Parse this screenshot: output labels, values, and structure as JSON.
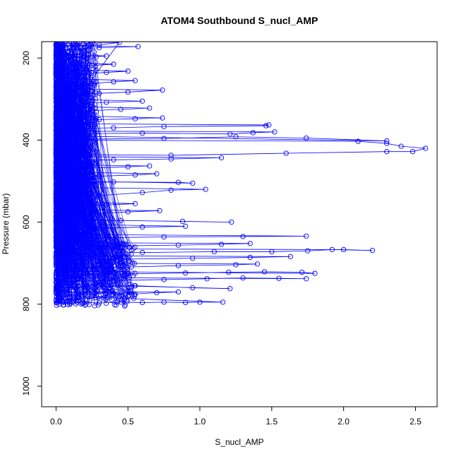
{
  "chart_data": {
    "type": "scatter",
    "title": "ATOM4 Southbound S_nucl_AMP",
    "xlabel": "S_nucl_AMP",
    "ylabel": "Pressure (mbar)",
    "xlim": [
      -0.1,
      2.65
    ],
    "ylim": [
      1050,
      160
    ],
    "y_inverted": true,
    "x_ticks": [
      0.0,
      0.5,
      1.0,
      1.5,
      2.0,
      2.5
    ],
    "x_tick_labels": [
      "0.0",
      "0.5",
      "1.0",
      "1.5",
      "2.0",
      "2.5"
    ],
    "y_ticks": [
      200,
      400,
      600,
      800,
      1000
    ],
    "y_tick_labels": [
      "200",
      "400",
      "600",
      "800",
      "1000"
    ],
    "grid": false,
    "legend": "none",
    "marker": "open-circle",
    "connect_points": true,
    "series": [
      {
        "values_description_points": [
          [
            0.02,
            800
          ],
          [
            0.05,
            795
          ],
          [
            0.1,
            798
          ],
          [
            0.18,
            795
          ],
          [
            0.3,
            797
          ],
          [
            0.45,
            795
          ],
          [
            0.6,
            796
          ],
          [
            0.75,
            795
          ],
          [
            0.9,
            796
          ],
          [
            1.0,
            795
          ],
          [
            1.16,
            795
          ],
          [
            0.03,
            780
          ],
          [
            0.2,
            775
          ],
          [
            0.35,
            772
          ],
          [
            0.55,
            775
          ],
          [
            0.7,
            772
          ],
          [
            0.85,
            770
          ],
          [
            0.05,
            770
          ],
          [
            0.02,
            760
          ],
          [
            0.25,
            758
          ],
          [
            0.55,
            755
          ],
          [
            0.95,
            760
          ],
          [
            1.21,
            762
          ],
          [
            0.1,
            752
          ],
          [
            0.04,
            745
          ],
          [
            0.4,
            742
          ],
          [
            0.75,
            740
          ],
          [
            1.05,
            738
          ],
          [
            1.3,
            736
          ],
          [
            1.55,
            737
          ],
          [
            1.74,
            738
          ],
          [
            0.06,
            735
          ],
          [
            0.03,
            728
          ],
          [
            0.5,
            726
          ],
          [
            0.9,
            724
          ],
          [
            1.2,
            722
          ],
          [
            1.45,
            721
          ],
          [
            1.71,
            722
          ],
          [
            1.8,
            725
          ],
          [
            0.05,
            720
          ],
          [
            0.02,
            712
          ],
          [
            0.45,
            710
          ],
          [
            0.85,
            706
          ],
          [
            1.25,
            704
          ],
          [
            1.4,
            702
          ],
          [
            0.08,
            700
          ],
          [
            0.02,
            692
          ],
          [
            0.5,
            690
          ],
          [
            0.95,
            688
          ],
          [
            1.35,
            686
          ],
          [
            1.63,
            684
          ],
          [
            0.07,
            682
          ],
          [
            0.03,
            676
          ],
          [
            0.6,
            674
          ],
          [
            1.1,
            672
          ],
          [
            1.5,
            672
          ],
          [
            1.75,
            670
          ],
          [
            1.92,
            667
          ],
          [
            2.2,
            669
          ],
          [
            2.0,
            667
          ],
          [
            0.05,
            665
          ],
          [
            0.02,
            660
          ],
          [
            0.4,
            658
          ],
          [
            0.85,
            656
          ],
          [
            1.15,
            654
          ],
          [
            1.35,
            652
          ],
          [
            0.1,
            650
          ],
          [
            0.03,
            640
          ],
          [
            0.35,
            638
          ],
          [
            0.75,
            636
          ],
          [
            1.3,
            635
          ],
          [
            1.74,
            634
          ],
          [
            0.06,
            630
          ],
          [
            0.02,
            618
          ],
          [
            0.3,
            615
          ],
          [
            0.6,
            612
          ],
          [
            0.9,
            610
          ],
          [
            0.05,
            605
          ],
          [
            0.02,
            598
          ],
          [
            0.45,
            596
          ],
          [
            0.88,
            598
          ],
          [
            1.22,
            600
          ],
          [
            0.07,
            594
          ],
          [
            0.03,
            585
          ],
          [
            0.25,
            580
          ],
          [
            0.5,
            575
          ],
          [
            0.72,
            572
          ],
          [
            0.04,
            570
          ],
          [
            0.02,
            562
          ],
          [
            0.35,
            558
          ],
          [
            0.55,
            555
          ],
          [
            0.03,
            550
          ],
          [
            0.05,
            540
          ],
          [
            0.3,
            535
          ],
          [
            0.6,
            528
          ],
          [
            0.8,
            522
          ],
          [
            1.04,
            520
          ],
          [
            0.06,
            515
          ],
          [
            0.02,
            505
          ],
          [
            0.4,
            502
          ],
          [
            0.85,
            503
          ],
          [
            0.95,
            505
          ],
          [
            0.05,
            500
          ],
          [
            0.03,
            490
          ],
          [
            0.3,
            488
          ],
          [
            0.55,
            485
          ],
          [
            0.7,
            482
          ],
          [
            0.04,
            478
          ],
          [
            0.02,
            470
          ],
          [
            0.25,
            468
          ],
          [
            0.5,
            465
          ],
          [
            0.65,
            463
          ],
          [
            0.03,
            460
          ],
          [
            0.03,
            450
          ],
          [
            0.4,
            448
          ],
          [
            0.8,
            446
          ],
          [
            1.15,
            443
          ],
          [
            0.05,
            440
          ],
          [
            0.04,
            435
          ],
          [
            0.8,
            437
          ],
          [
            1.6,
            432
          ],
          [
            2.3,
            428
          ],
          [
            2.48,
            428
          ],
          [
            2.57,
            420
          ],
          [
            2.4,
            415
          ],
          [
            2.3,
            408
          ],
          [
            2.1,
            403
          ],
          [
            0.06,
            400
          ],
          [
            0.02,
            398
          ],
          [
            0.75,
            396
          ],
          [
            1.25,
            392
          ],
          [
            1.74,
            395
          ],
          [
            2.3,
            402
          ],
          [
            0.05,
            390
          ],
          [
            0.03,
            385
          ],
          [
            0.6,
            383
          ],
          [
            1.21,
            385
          ],
          [
            1.37,
            382
          ],
          [
            1.52,
            380
          ],
          [
            0.04,
            378
          ],
          [
            0.02,
            372
          ],
          [
            0.4,
            370
          ],
          [
            0.75,
            367
          ],
          [
            1.46,
            365
          ],
          [
            1.48,
            363
          ],
          [
            0.05,
            360
          ],
          [
            0.03,
            352
          ],
          [
            0.3,
            350
          ],
          [
            0.55,
            348
          ],
          [
            0.74,
            346
          ],
          [
            0.04,
            340
          ],
          [
            0.02,
            330
          ],
          [
            0.25,
            328
          ],
          [
            0.45,
            325
          ],
          [
            0.65,
            322
          ],
          [
            0.03,
            318
          ],
          [
            0.02,
            310
          ],
          [
            0.35,
            308
          ],
          [
            0.6,
            305
          ],
          [
            0.03,
            300
          ],
          [
            0.02,
            290
          ],
          [
            0.3,
            286
          ],
          [
            0.5,
            283
          ],
          [
            0.74,
            278
          ],
          [
            0.04,
            275
          ],
          [
            0.02,
            265
          ],
          [
            0.25,
            262
          ],
          [
            0.4,
            258
          ],
          [
            0.55,
            255
          ],
          [
            0.03,
            250
          ],
          [
            0.02,
            240
          ],
          [
            0.2,
            238
          ],
          [
            0.35,
            235
          ],
          [
            0.5,
            232
          ],
          [
            0.03,
            228
          ],
          [
            0.02,
            220
          ],
          [
            0.25,
            218
          ],
          [
            0.4,
            215
          ],
          [
            0.02,
            210
          ],
          [
            0.02,
            200
          ],
          [
            0.2,
            198
          ],
          [
            0.35,
            195
          ],
          [
            0.02,
            190
          ],
          [
            0.02,
            180
          ],
          [
            0.15,
            178
          ],
          [
            0.3,
            175
          ],
          [
            0.57,
            172
          ],
          [
            0.05,
            170
          ],
          [
            0.3,
            168
          ],
          [
            0.44,
            162
          ],
          [
            0.02,
            165
          ]
        ]
      }
    ]
  }
}
